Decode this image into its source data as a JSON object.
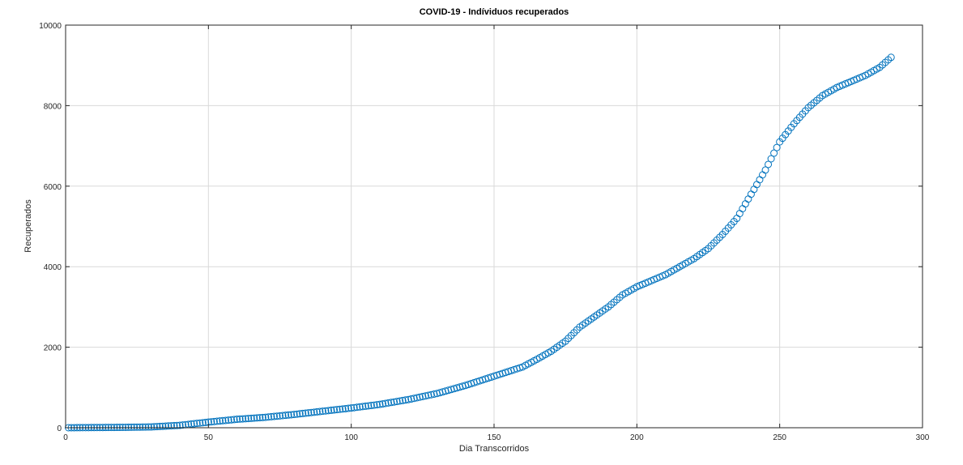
{
  "chart_data": {
    "type": "scatter",
    "title": "COVID-19 - Indíviduos recuperados",
    "xlabel": "Dia Transcorridos",
    "ylabel": "Recuperados",
    "xlim": [
      0,
      300
    ],
    "ylim": [
      0,
      10000
    ],
    "xticks": [
      0,
      50,
      100,
      150,
      200,
      250,
      300
    ],
    "yticks": [
      0,
      2000,
      4000,
      6000,
      8000,
      10000
    ],
    "grid": true,
    "marker": "circle",
    "series_color": "#0072BD",
    "curve_points": [
      [
        1,
        0
      ],
      [
        20,
        10
      ],
      [
        30,
        20
      ],
      [
        40,
        60
      ],
      [
        45,
        100
      ],
      [
        50,
        140
      ],
      [
        60,
        210
      ],
      [
        70,
        260
      ],
      [
        80,
        330
      ],
      [
        90,
        410
      ],
      [
        100,
        490
      ],
      [
        110,
        580
      ],
      [
        120,
        700
      ],
      [
        130,
        850
      ],
      [
        140,
        1050
      ],
      [
        150,
        1280
      ],
      [
        160,
        1510
      ],
      [
        165,
        1700
      ],
      [
        170,
        1900
      ],
      [
        175,
        2150
      ],
      [
        180,
        2500
      ],
      [
        185,
        2750
      ],
      [
        190,
        3000
      ],
      [
        195,
        3300
      ],
      [
        200,
        3500
      ],
      [
        210,
        3800
      ],
      [
        220,
        4200
      ],
      [
        225,
        4450
      ],
      [
        230,
        4800
      ],
      [
        235,
        5200
      ],
      [
        240,
        5800
      ],
      [
        245,
        6400
      ],
      [
        250,
        7100
      ],
      [
        255,
        7550
      ],
      [
        260,
        7950
      ],
      [
        265,
        8250
      ],
      [
        270,
        8450
      ],
      [
        275,
        8600
      ],
      [
        280,
        8750
      ],
      [
        285,
        8950
      ],
      [
        289,
        9200
      ]
    ],
    "n_points": 289
  }
}
